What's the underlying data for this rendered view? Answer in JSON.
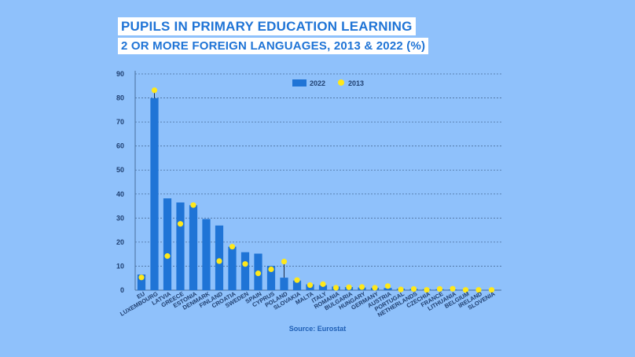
{
  "title": {
    "line1": "PUPILS IN PRIMARY EDUCATION LEARNING",
    "line2": "2 OR MORE FOREIGN LANGUAGES, 2013 & 2022 (%)"
  },
  "source": "Source: Eurostat",
  "colors": {
    "background": "#8fc1fb",
    "bar_2022": "#1f74d6",
    "dot_2013": "#ffe81a",
    "grid": "#4a6f9c",
    "text": "#1f3f70"
  },
  "chart_data": {
    "type": "bar",
    "title": "PUPILS IN PRIMARY EDUCATION LEARNING 2 OR MORE FOREIGN LANGUAGES, 2013 & 2022 (%)",
    "xlabel": "",
    "ylabel": "",
    "ylim": [
      0,
      90
    ],
    "yticks": [
      0,
      10,
      20,
      30,
      40,
      50,
      60,
      70,
      80,
      90
    ],
    "grid": true,
    "legend_position": "top-center",
    "categories": [
      "EU",
      "LUXEMBOURG",
      "LATVIA",
      "GREECE",
      "ESTONIA",
      "DENMARK",
      "FINLAND",
      "CROATIA",
      "SWEDEN",
      "SPAIN",
      "CYPRUS",
      "POLAND",
      "SLOVAKIA",
      "MALTA",
      "ITALY",
      "ROMANIA",
      "BULGARIA",
      "HUNGARY",
      "GERMANY",
      "AUSTRIA",
      "PORTUGAL",
      "NETHERLANDS",
      "CZECHIA",
      "FRANCE",
      "LITHUANIA",
      "BELGIUM",
      "IRELAND",
      "SLOVENIA"
    ],
    "series": [
      {
        "name": "2022",
        "kind": "bar",
        "values": [
          6.5,
          79.9,
          38.2,
          36.5,
          35.4,
          29.6,
          26.9,
          18.1,
          15.8,
          15.2,
          10.1,
          5.2,
          4.0,
          2.4,
          2.1,
          1.5,
          1.3,
          1.1,
          1.0,
          0.9,
          0.6,
          0.5,
          0.4,
          0.4,
          0.3,
          0.2,
          0.1,
          0.1
        ]
      },
      {
        "name": "2013",
        "kind": "dot",
        "values": [
          5.3,
          83.2,
          14.2,
          27.6,
          35.4,
          null,
          12.1,
          18.1,
          10.9,
          7.0,
          8.7,
          11.9,
          4.2,
          2.1,
          2.5,
          1.0,
          1.2,
          1.3,
          1.0,
          1.7,
          0.3,
          0.5,
          0.1,
          0.5,
          0.6,
          0.1,
          0.1,
          0.1
        ]
      }
    ]
  }
}
